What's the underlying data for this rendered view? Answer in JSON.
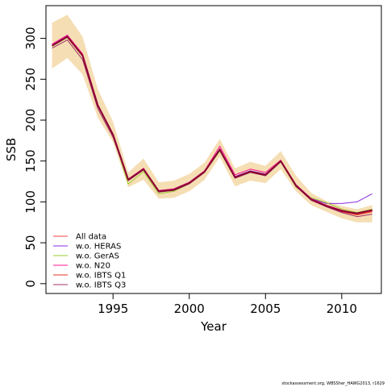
{
  "chart_data": {
    "type": "line",
    "xlabel": "Year",
    "ylabel": "SSB",
    "xlim": [
      1990.6,
      2012.6
    ],
    "ylim": [
      -12,
      340
    ],
    "xticks": [
      1995,
      2000,
      2005,
      2010
    ],
    "yticks": [
      0,
      50,
      100,
      150,
      200,
      250,
      300
    ],
    "x": [
      1991,
      1992,
      1993,
      1994,
      1995,
      1996,
      1997,
      1998,
      1999,
      2000,
      2001,
      2002,
      2003,
      2004,
      2005,
      2006,
      2007,
      2008,
      2009,
      2010,
      2011,
      2012
    ],
    "band": {
      "color": "#f5deb3",
      "lower": [
        263,
        276,
        256,
        203,
        173,
        118,
        127,
        104,
        105,
        113,
        127,
        155,
        119,
        126,
        123,
        140,
        113,
        96,
        88,
        80,
        75,
        75
      ],
      "upper": [
        319,
        329,
        302,
        238,
        198,
        136,
        153,
        124,
        126,
        134,
        148,
        177,
        141,
        149,
        144,
        162,
        132,
        111,
        101,
        95,
        91,
        96
      ]
    },
    "series": [
      {
        "name": "All data",
        "color": "#ff4040",
        "width": 1,
        "values": [
          291,
          302,
          279,
          218,
          182,
          127,
          140,
          113,
          115,
          123,
          137,
          164,
          130,
          137,
          133,
          150,
          120,
          103,
          95,
          89,
          85,
          89
        ]
      },
      {
        "name": "w.o. HERAS",
        "color": "#8a2be2",
        "width": 1,
        "values": [
          292,
          303,
          280,
          219,
          183,
          127,
          141,
          113,
          116,
          124,
          138,
          165,
          131,
          138,
          134,
          150,
          121,
          104,
          98,
          98,
          100,
          110
        ]
      },
      {
        "name": "w.o. GerAS",
        "color": "#9acd32",
        "width": 1,
        "values": [
          290,
          301,
          278,
          217,
          181,
          122,
          137,
          110,
          113,
          122,
          136,
          162,
          129,
          136,
          132,
          149,
          118,
          105,
          99,
          91,
          87,
          91
        ]
      },
      {
        "name": "w.o. N20",
        "color": "#ff1493",
        "width": 1,
        "values": [
          293,
          304,
          281,
          219,
          183,
          128,
          141,
          114,
          116,
          124,
          138,
          168,
          133,
          140,
          136,
          151,
          121,
          104,
          96,
          90,
          86,
          90
        ]
      },
      {
        "name": "w.o. IBTS Q1",
        "color": "#e8302a",
        "width": 1,
        "values": [
          291,
          302,
          279,
          218,
          182,
          127,
          140,
          113,
          115,
          123,
          137,
          164,
          130,
          137,
          133,
          150,
          120,
          103,
          95,
          88,
          84,
          88
        ]
      },
      {
        "name": "w.o. IBTS Q3",
        "color": "#a0306a",
        "width": 1,
        "values": [
          288,
          298,
          274,
          214,
          179,
          126,
          139,
          112,
          114,
          122,
          136,
          163,
          129,
          136,
          132,
          149,
          119,
          102,
          94,
          87,
          82,
          85
        ]
      },
      {
        "name": "",
        "color": "#8b0030",
        "width": 2,
        "values": [
          291,
          302,
          279,
          218,
          182,
          127,
          140,
          113,
          115,
          123,
          137,
          164,
          130,
          137,
          133,
          150,
          120,
          103,
          95,
          89,
          86,
          90
        ]
      }
    ]
  },
  "footer_text": "stockassessment.org, WBSSher_HAWG2013, r1629"
}
